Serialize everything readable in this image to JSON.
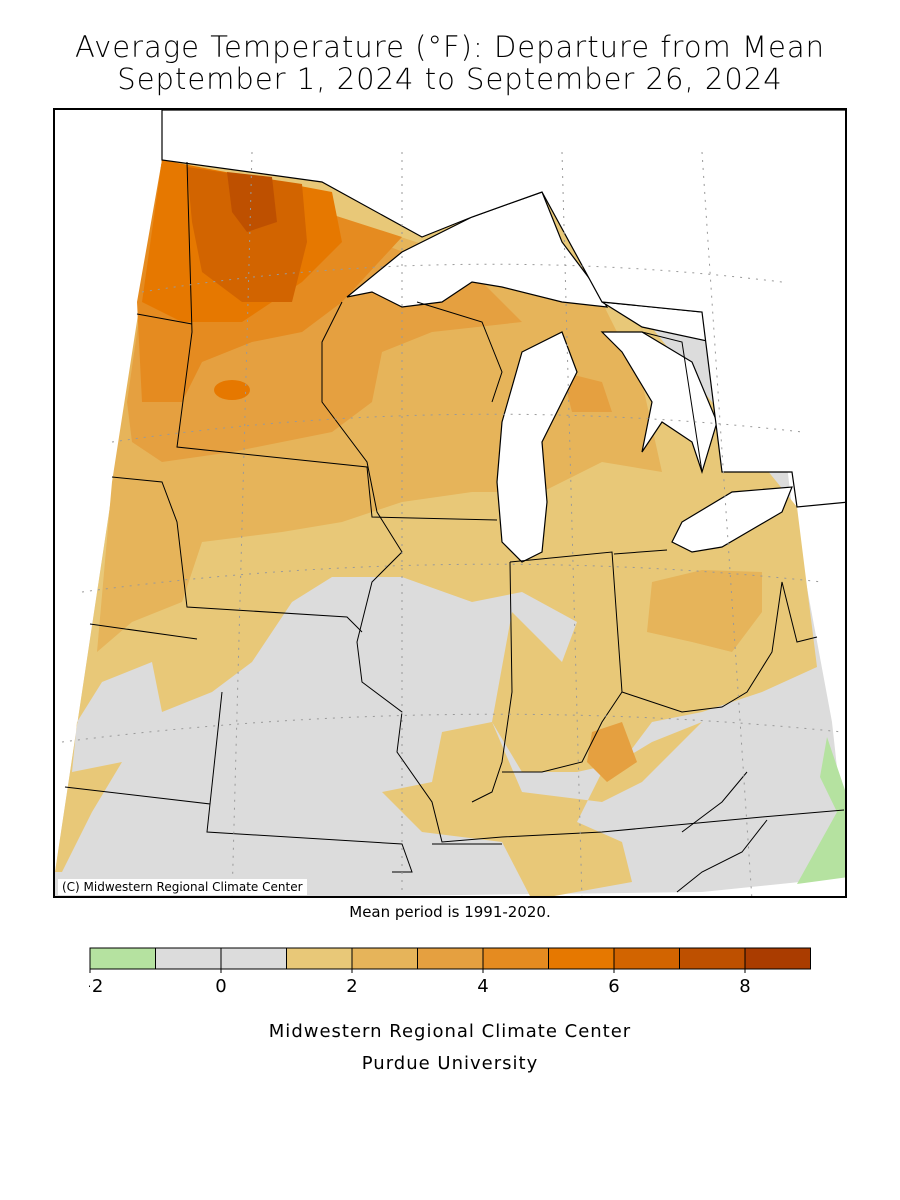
{
  "title": {
    "line1": "Average Temperature (°F): Departure from Mean",
    "line2": "September 1, 2024 to September 26, 2024"
  },
  "map": {
    "credit": "(C) Midwestern Regional Climate Center",
    "mean_period": "Mean period is 1991-2020."
  },
  "legend": {
    "bins": [
      {
        "from": -2,
        "to": -1,
        "color": "#b5e2a0"
      },
      {
        "from": -1,
        "to": 0,
        "color": "#dcdcdc"
      },
      {
        "from": 0,
        "to": 1,
        "color": "#dcdcdc"
      },
      {
        "from": 1,
        "to": 2,
        "color": "#e8c878"
      },
      {
        "from": 2,
        "to": 3,
        "color": "#e6b45a"
      },
      {
        "from": 3,
        "to": 4,
        "color": "#e5a040"
      },
      {
        "from": 4,
        "to": 5,
        "color": "#e58b20"
      },
      {
        "from": 5,
        "to": 6,
        "color": "#e67800"
      },
      {
        "from": 6,
        "to": 7,
        "color": "#d26400"
      },
      {
        "from": 7,
        "to": 8,
        "color": "#be5000"
      },
      {
        "from": 8,
        "to": 9,
        "color": "#aa3c00"
      }
    ],
    "tick_labels": [
      "−2",
      "0",
      "2",
      "4",
      "6",
      "8"
    ]
  },
  "footer": {
    "line1": "Midwestern Regional Climate Center",
    "line2": "Purdue University"
  }
}
